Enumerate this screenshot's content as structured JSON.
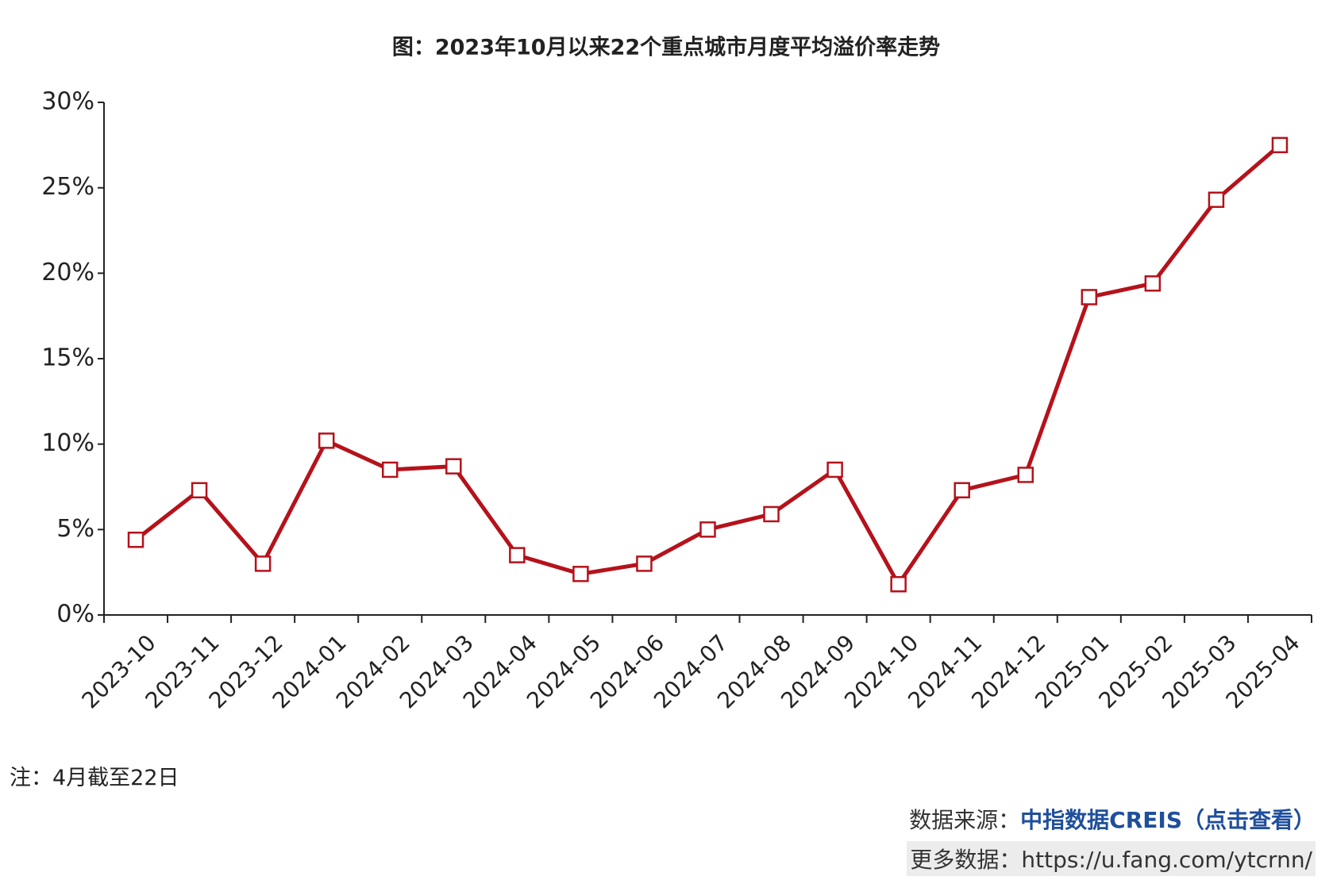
{
  "chart_data": {
    "type": "line",
    "title": "图：2023年10月以来22个重点城市月度平均溢价率走势",
    "categories": [
      "2023-10",
      "2023-11",
      "2023-12",
      "2024-01",
      "2024-02",
      "2024-03",
      "2024-04",
      "2024-05",
      "2024-06",
      "2024-07",
      "2024-08",
      "2024-09",
      "2024-10",
      "2024-11",
      "2024-12",
      "2025-01",
      "2025-02",
      "2025-03",
      "2025-04"
    ],
    "series": [
      {
        "color": "#b5121b",
        "values": [
          4.4,
          7.3,
          3.0,
          10.2,
          8.5,
          8.7,
          3.5,
          2.4,
          3.0,
          5.0,
          5.9,
          8.5,
          1.8,
          7.3,
          8.2,
          18.6,
          19.4,
          24.3,
          27.5
        ]
      }
    ],
    "ylim": [
      0,
      30
    ],
    "yticks": [
      {
        "value": 0,
        "label": "0%"
      },
      {
        "value": 5,
        "label": "5%"
      },
      {
        "value": 10,
        "label": "10%"
      },
      {
        "value": 15,
        "label": "15%"
      },
      {
        "value": 20,
        "label": "20%"
      },
      {
        "value": 25,
        "label": "25%"
      },
      {
        "value": 30,
        "label": "30%"
      }
    ],
    "grid": false
  },
  "note": "注：4月截至22日",
  "source": {
    "label": "数据来源：",
    "link": "中指数据CREIS（点击查看）"
  },
  "more": "更多数据：https://u.fang.com/ytcrnn/"
}
